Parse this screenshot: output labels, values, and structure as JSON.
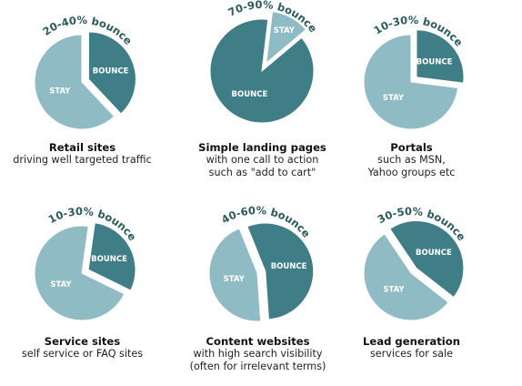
{
  "chart_data": [
    {
      "type": "pie",
      "title": "Retail sites",
      "subtitle": [
        "driving well targeted traffic"
      ],
      "range_label": "20-40% bounce",
      "slices": [
        {
          "label": "BOUNCE",
          "value": 38,
          "exploded": true,
          "color": "#3f7e87"
        },
        {
          "label": "STAY",
          "value": 62,
          "exploded": false,
          "color": "#8fbcc4"
        }
      ]
    },
    {
      "type": "pie",
      "title": "Simple landing pages",
      "subtitle": [
        "with one call to action",
        "such as \"add to cart\""
      ],
      "range_label": "70-90% bounce",
      "slices": [
        {
          "label": "BOUNCE",
          "value": 88,
          "exploded": false,
          "color": "#3f7e87"
        },
        {
          "label": "STAY",
          "value": 12,
          "exploded": true,
          "color": "#8fbcc4"
        }
      ]
    },
    {
      "type": "pie",
      "title": "Portals",
      "subtitle": [
        "such as MSN,",
        "Yahoo groups etc"
      ],
      "range_label": "10-30% bounce",
      "slices": [
        {
          "label": "BOUNCE",
          "value": 27,
          "exploded": true,
          "color": "#3f7e87"
        },
        {
          "label": "STAY",
          "value": 73,
          "exploded": false,
          "color": "#8fbcc4"
        }
      ]
    },
    {
      "type": "pie",
      "title": "Service sites",
      "subtitle": [
        "self service or FAQ sites"
      ],
      "range_label": "10-30% bounce",
      "slices": [
        {
          "label": "BOUNCE",
          "value": 30,
          "exploded": true,
          "color": "#3f7e87"
        },
        {
          "label": "STAY",
          "value": 70,
          "exploded": false,
          "color": "#8fbcc4"
        }
      ]
    },
    {
      "type": "pie",
      "title": "Content websites",
      "subtitle": [
        "with high search visibility",
        "(often for irrelevant terms)"
      ],
      "range_label": "40-60% bounce",
      "slices": [
        {
          "label": "BOUNCE",
          "value": 55,
          "exploded": true,
          "color": "#3f7e87"
        },
        {
          "label": "STAY",
          "value": 45,
          "exploded": false,
          "color": "#8fbcc4"
        }
      ]
    },
    {
      "type": "pie",
      "title": "Lead generation",
      "subtitle": [
        "services for sale"
      ],
      "range_label": "30-50% bounce",
      "slices": [
        {
          "label": "BOUNCE",
          "value": 45,
          "exploded": true,
          "color": "#3f7e87"
        },
        {
          "label": "STAY",
          "value": 55,
          "exploded": false,
          "color": "#8fbcc4"
        }
      ]
    }
  ],
  "colors": {
    "bounce": "#3f7e87",
    "stay": "#8fbcc4",
    "range_label": "#2a5a60"
  }
}
